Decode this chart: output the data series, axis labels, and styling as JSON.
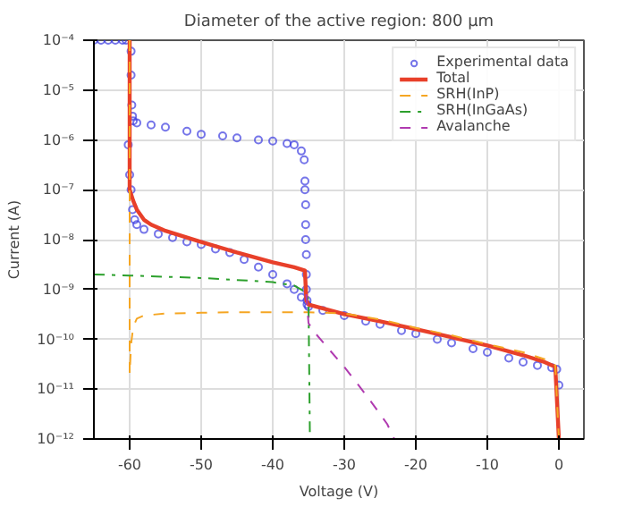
{
  "chart_data": {
    "type": "line",
    "title": "Diameter of the active region: 800 μm",
    "xlabel": "Voltage (V)",
    "ylabel": "Current (A)",
    "log": "y",
    "xlim": [
      -65,
      3.5
    ],
    "xticks": [
      -60,
      -50,
      -40,
      -30,
      -20,
      -10,
      0
    ],
    "ylim": [
      1e-12,
      0.0001
    ],
    "yticks": [
      {
        "value": 1e-12,
        "label": "10⁻¹²"
      },
      {
        "value": 1e-11,
        "label": "10⁻¹¹"
      },
      {
        "value": 1e-10,
        "label": "10⁻¹⁰"
      },
      {
        "value": 1e-09,
        "label": "10⁻⁹"
      },
      {
        "value": 1e-08,
        "label": "10⁻⁸"
      },
      {
        "value": 1e-07,
        "label": "10⁻⁷"
      },
      {
        "value": 1e-06,
        "label": "10⁻⁶"
      },
      {
        "value": 1e-05,
        "label": "10⁻⁵"
      },
      {
        "value": 0.0001,
        "label": "10⁻⁴"
      }
    ],
    "grid": true,
    "legend": "top right",
    "series": [
      {
        "name": "Experimental data",
        "type": "scatter",
        "marker": "circle",
        "color": "#3a3ae0",
        "x": [
          -65,
          -64,
          -63,
          -62,
          -61,
          -60.5,
          -60.2,
          -59.8,
          -59.8,
          -59.7,
          -59.6,
          -59.5,
          -59,
          -57,
          -55,
          -52,
          -50,
          -47,
          -45,
          -42,
          -40,
          -38,
          -37,
          -36,
          -35.6,
          -35.5,
          -35.5,
          -35.4,
          -35.4,
          -35.4,
          -35.3,
          -35.3,
          -35.3,
          -35.2,
          -60,
          -59.8,
          -59.6,
          -59.3,
          -59,
          -58,
          -56,
          -54,
          -52,
          -50,
          -48,
          -46,
          -44,
          -42,
          -40,
          -38,
          -37,
          -36,
          -35.2,
          -35,
          -33,
          -30,
          -27,
          -25,
          -22,
          -20,
          -17,
          -15,
          -12,
          -10,
          -7,
          -5,
          -3,
          -1,
          -0.3,
          0
        ],
        "values": [
          0.0001,
          0.0001,
          0.0001,
          0.0001,
          0.0001,
          0.0001,
          8e-07,
          6e-05,
          2e-05,
          5e-06,
          3e-06,
          2.4e-06,
          2.2e-06,
          2e-06,
          1.8e-06,
          1.5e-06,
          1.3e-06,
          1.2e-06,
          1.1e-06,
          1e-06,
          9.5e-07,
          8.5e-07,
          8e-07,
          6e-07,
          4e-07,
          1.5e-07,
          1e-07,
          5e-08,
          2e-08,
          1e-08,
          5e-09,
          2e-09,
          1e-09,
          6e-10,
          2e-07,
          1e-07,
          4e-08,
          2.5e-08,
          2e-08,
          1.6e-08,
          1.3e-08,
          1.1e-08,
          9e-09,
          8e-09,
          6.5e-09,
          5.5e-09,
          4e-09,
          2.8e-09,
          2e-09,
          1.3e-09,
          1e-09,
          7e-10,
          5e-10,
          4.5e-10,
          3.8e-10,
          3e-10,
          2.3e-10,
          2e-10,
          1.5e-10,
          1.3e-10,
          1e-10,
          8.5e-11,
          6.5e-11,
          5.5e-11,
          4.2e-11,
          3.5e-11,
          3e-11,
          2.7e-11,
          2.5e-11,
          1.2e-11
        ]
      },
      {
        "name": "Total",
        "color": "#e8402a",
        "line_style": "solid",
        "x": [
          -60,
          -60,
          -59.5,
          -59,
          -58,
          -57,
          -55,
          -52,
          -50,
          -45,
          -40,
          -37,
          -35.5,
          -35.3,
          -35,
          -30,
          -25,
          -20,
          -15,
          -10,
          -5,
          -2,
          -0.5,
          0
        ],
        "values": [
          0.0001,
          1e-07,
          6e-08,
          4e-08,
          2.5e-08,
          2e-08,
          1.5e-08,
          1.1e-08,
          9e-09,
          5.5e-09,
          3.5e-09,
          2.8e-09,
          2.4e-09,
          6e-10,
          5e-10,
          3.2e-10,
          2.3e-10,
          1.6e-10,
          1.1e-10,
          7.5e-11,
          4.8e-11,
          3.5e-11,
          2.8e-11,
          1e-12
        ]
      },
      {
        "name": "SRH(InP)",
        "color": "#f5a623",
        "line_style": "dashed",
        "x": [
          -60,
          -60,
          -59.8,
          -59.5,
          -59,
          -58,
          -55,
          -50,
          -45,
          -40,
          -35,
          -30,
          -25,
          -20,
          -15,
          -10,
          -5,
          -2,
          -0.5,
          0
        ],
        "values": [
          0.0001,
          2e-11,
          8e-11,
          1.8e-10,
          2.6e-10,
          3e-10,
          3.3e-10,
          3.4e-10,
          3.5e-10,
          3.5e-10,
          3.5e-10,
          3.3e-10,
          2.5e-10,
          1.7e-10,
          1.2e-10,
          8e-11,
          5.5e-11,
          4e-11,
          3e-11,
          1e-12
        ]
      },
      {
        "name": "SRH(InGaAs)",
        "color": "#2ca02c",
        "line_style": "dashdot",
        "x": [
          -65,
          -60,
          -55,
          -50,
          -45,
          -40,
          -37,
          -35.5,
          -35,
          -34.8
        ],
        "values": [
          2e-09,
          1.9e-09,
          1.8e-09,
          1.7e-09,
          1.55e-09,
          1.4e-09,
          1.2e-09,
          9e-10,
          6e-10,
          1e-12
        ]
      },
      {
        "name": "Avalanche",
        "color": "#b03ab0",
        "line_style": "dashed",
        "x": [
          -35.3,
          -35,
          -34,
          -32,
          -30,
          -28,
          -26,
          -24,
          -23
        ],
        "values": [
          8e-10,
          2.1e-10,
          1.3e-10,
          6e-11,
          2.8e-11,
          1.2e-11,
          5e-12,
          2e-12,
          1e-12
        ]
      }
    ]
  }
}
